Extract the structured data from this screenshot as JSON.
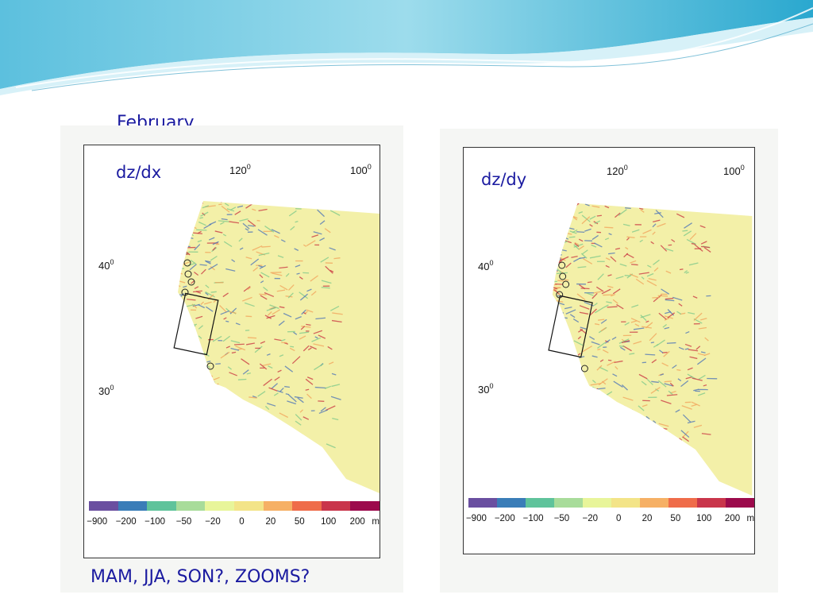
{
  "slide": {
    "title": "February",
    "caption": "MAM, JJA, SON?, ZOOMS?"
  },
  "panels": [
    {
      "label": "dz/dx",
      "lon": [
        "120",
        "100"
      ],
      "lat": [
        "40",
        "30"
      ],
      "degree_mark": "0"
    },
    {
      "label": "dz/dy",
      "lon": [
        "120",
        "100"
      ],
      "lat": [
        "40",
        "30"
      ],
      "degree_mark": "0"
    }
  ],
  "colorbar": {
    "ticks": [
      "−900",
      "−200",
      "−100",
      "−50",
      "−20",
      "0",
      "20",
      "50",
      "100",
      "200"
    ],
    "unit": "m",
    "colors": [
      "#6a4fa0",
      "#3a7db8",
      "#5fc39b",
      "#a8dc9a",
      "#e8f59a",
      "#f3e488",
      "#f6b065",
      "#ef6c4a",
      "#c9354b",
      "#9c0a4c"
    ]
  },
  "map_colors": {
    "land": "#f3f0a8",
    "blue": "#4a72b8",
    "red": "#c9323f",
    "green": "#7bc88a",
    "orange": "#f2a25a"
  }
}
